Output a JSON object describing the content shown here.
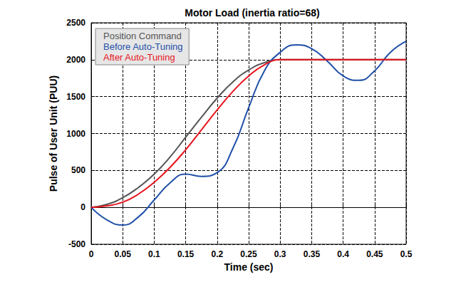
{
  "chart_data": {
    "type": "line",
    "title": "Motor Load (inertia ratio=68)",
    "x_label": "Time (sec)",
    "y_label": "Pulse of User Unit (PUU)",
    "x": [
      0,
      0.025,
      0.05,
      0.075,
      0.1,
      0.125,
      0.15,
      0.175,
      0.2,
      0.225,
      0.25,
      0.275,
      0.3,
      0.325,
      0.35,
      0.375,
      0.4,
      0.425,
      0.45,
      0.475,
      0.5
    ],
    "series": [
      {
        "name": "Position Command",
        "color": "#555555",
        "values": [
          0,
          40,
          130,
          270,
          450,
          680,
          950,
          1220,
          1480,
          1700,
          1860,
          1960,
          2000,
          2000,
          2000,
          2000,
          2000,
          2000,
          2000,
          2000,
          2000
        ]
      },
      {
        "name": "Before Auto-Tuning",
        "color": "#1f4fa8",
        "values": [
          0,
          -170,
          -240,
          -130,
          100,
          330,
          450,
          420,
          470,
          800,
          1350,
          1850,
          2100,
          2200,
          2150,
          1980,
          1780,
          1720,
          1850,
          2100,
          2250
        ]
      },
      {
        "name": "After Auto-Tuning",
        "color": "#e8141e",
        "values": [
          0,
          20,
          70,
          180,
          340,
          540,
          780,
          1050,
          1320,
          1570,
          1780,
          1930,
          2000,
          2000,
          2000,
          2000,
          2000,
          2000,
          2000,
          2000,
          2000
        ]
      }
    ],
    "xlim": [
      0,
      0.5
    ],
    "xticks": [
      0,
      0.05,
      0.1,
      0.15,
      0.2,
      0.25,
      0.3,
      0.35,
      0.4,
      0.45,
      0.5
    ],
    "ylim": [
      -500,
      2500
    ],
    "yticks": [
      -500,
      0,
      500,
      1000,
      1500,
      2000,
      2500
    ],
    "grid": true,
    "legend": "upper left"
  }
}
